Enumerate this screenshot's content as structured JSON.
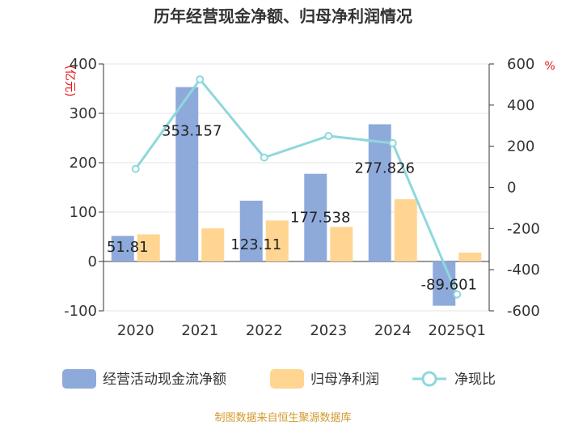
{
  "title": "历年经营现金净额、归母净利润情况",
  "source": "制图数据来自恒生聚源数据库",
  "units": {
    "left": "(亿元)",
    "right": "%"
  },
  "colors": {
    "cashflow": "#8eaadb",
    "profit": "#ffd591",
    "ratio": "#8ed8dc"
  },
  "chart_data": {
    "type": "bar",
    "categories": [
      "2020",
      "2021",
      "2022",
      "2023",
      "2024",
      "2025Q1"
    ],
    "series": [
      {
        "name": "经营活动现金流净额",
        "type": "bar",
        "axis": "left",
        "values": [
          51.81,
          353.157,
          123.11,
          177.538,
          277.826,
          -89.601
        ]
      },
      {
        "name": "归母净利润",
        "type": "bar",
        "axis": "left",
        "values": [
          55,
          67,
          83,
          70,
          126,
          18
        ]
      },
      {
        "name": "净现比",
        "type": "line",
        "axis": "right",
        "values": [
          90,
          525,
          145,
          250,
          215,
          -520
        ]
      }
    ],
    "data_labels": [
      "51.81",
      "353.157",
      "123.11",
      "177.538",
      "277.826",
      "-89.601"
    ],
    "y_left": {
      "ticks": [
        "400",
        "300",
        "200",
        "100",
        "0",
        "-100"
      ],
      "range": [
        -100,
        400
      ]
    },
    "y_right": {
      "ticks": [
        "600",
        "400",
        "200",
        "0",
        "-200",
        "-400",
        "-600"
      ],
      "range": [
        -600,
        600
      ]
    },
    "grid": true,
    "legend_position": "bottom"
  }
}
